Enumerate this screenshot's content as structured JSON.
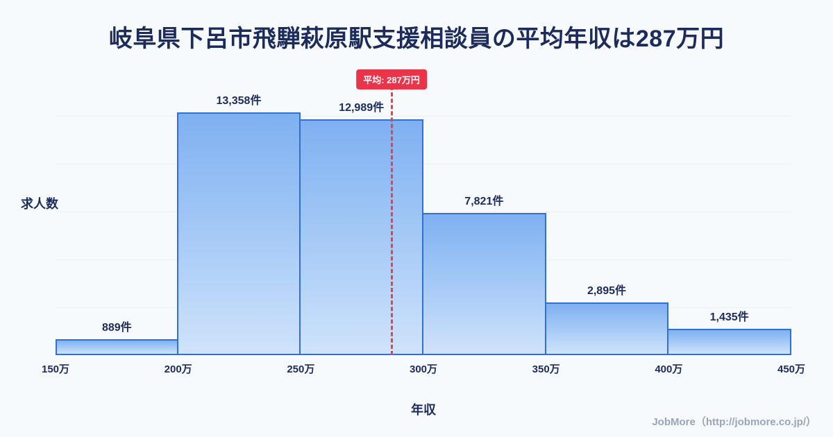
{
  "title": "岐阜県下呂市飛騨萩原駅支援相談員の平均年収は287万円",
  "credit": "JobMore（http://jobmore.co.jp/）",
  "chart_data": {
    "type": "bar",
    "subtype": "histogram",
    "title": "岐阜県下呂市飛騨萩原駅支援相談員の平均年収は287万円",
    "xlabel": "年収",
    "ylabel": "求人数",
    "categories": [
      "150万-200万",
      "200万-250万",
      "250万-300万",
      "300万-350万",
      "350万-400万",
      "400万-450万"
    ],
    "values": [
      889,
      13358,
      12989,
      7821,
      2895,
      1435
    ],
    "count_labels": [
      "889件",
      "13,358件",
      "12,989件",
      "7,821件",
      "2,895件",
      "1,435件"
    ],
    "tick_labels": [
      "150万",
      "200万",
      "250万",
      "300万",
      "350万",
      "400万",
      "450万"
    ],
    "x_min": 150,
    "x_max": 450,
    "average": {
      "value": 287,
      "label": "平均: 287万円"
    },
    "grid": true,
    "legend": false,
    "colors": {
      "bar_fill_top": "#7fb0f1",
      "bar_fill_bottom": "#cfe3fb",
      "bar_border": "#2e6fd9",
      "average_red": "#e8354a",
      "text_navy": "#1c2b5c",
      "background": "#f7fafd",
      "gridline": "#e9eff6",
      "credit_gray": "#9aa6b8"
    }
  }
}
